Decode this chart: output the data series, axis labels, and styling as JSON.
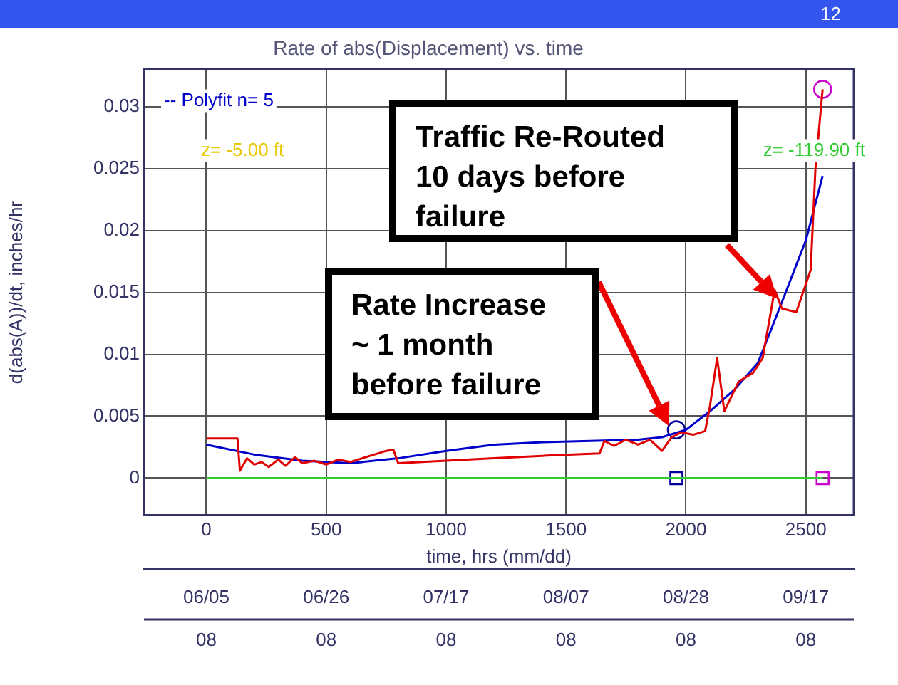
{
  "chart_data": {
    "type": "line",
    "title": "Rate of abs(Displacement) vs. time",
    "xlabel": "time, hrs (mm/dd)",
    "ylabel": "d(abs(A))/dt, inches/hr",
    "xlim": [
      -260,
      2700
    ],
    "xticks": [
      0,
      500,
      1000,
      1500,
      2000,
      2500
    ],
    "x2lim": [
      "2008-05-25T04:00",
      "2008-09-25T12:00"
    ],
    "x2ticks": [
      {
        "value": "2008-06-05",
        "label": "06/05\n08"
      },
      {
        "value": "2008-06-25T20:00",
        "label": "06/26\n08"
      },
      {
        "value": "2008-07-16T16:00",
        "label": "07/17\n08"
      },
      {
        "value": "2008-08-06T12:00",
        "label": "08/07\n08"
      },
      {
        "value": "2008-08-27T08:00",
        "label": "08/28\n08"
      },
      {
        "value": "2008-09-17T04:00",
        "label": "09/17\n08"
      }
    ],
    "ylim": [
      -0.003,
      0.033
    ],
    "yticks": [
      0,
      0.005,
      0.01,
      0.015,
      0.02,
      0.025,
      0.03
    ],
    "grid": true,
    "series": [
      {
        "color": "#e00000",
        "marker": "none",
        "x": [
          0,
          130,
          140,
          170,
          200,
          230,
          260,
          300,
          330,
          370,
          400,
          450,
          500,
          550,
          600,
          650,
          700,
          750,
          780,
          800,
          1000,
          1200,
          1400,
          1640,
          1660,
          1700,
          1750,
          1800,
          1850,
          1900,
          1940,
          1980,
          2030,
          2080,
          2100,
          2130,
          2160,
          2220,
          2280,
          2320,
          2370,
          2400,
          2460,
          2520,
          2540,
          2570
        ],
        "values": [
          0.0032,
          0.0032,
          0.0006,
          0.0016,
          0.0011,
          0.0013,
          0.0009,
          0.0015,
          0.001,
          0.0017,
          0.0012,
          0.0014,
          0.0011,
          0.0015,
          0.0013,
          0.0016,
          0.0019,
          0.0022,
          0.0023,
          0.0012,
          0.0014,
          0.0016,
          0.0018,
          0.002,
          0.003,
          0.0026,
          0.0031,
          0.0027,
          0.0031,
          0.0022,
          0.0033,
          0.0037,
          0.0035,
          0.0038,
          0.0058,
          0.0097,
          0.0054,
          0.0078,
          0.0085,
          0.0097,
          0.0152,
          0.0137,
          0.0134,
          0.0168,
          0.025,
          0.0314
        ]
      },
      {
        "name": "-- Polyfit n= 5",
        "color": "#0000cc",
        "marker": "none",
        "x": [
          0,
          200,
          400,
          600,
          800,
          1000,
          1200,
          1400,
          1600,
          1800,
          1900,
          2000,
          2100,
          2200,
          2300,
          2400,
          2500,
          2570
        ],
        "values": [
          0.0027,
          0.0019,
          0.0014,
          0.0012,
          0.0016,
          0.0022,
          0.0027,
          0.0029,
          0.003,
          0.0031,
          0.0033,
          0.0039,
          0.0054,
          0.0071,
          0.0093,
          0.0142,
          0.0192,
          0.0244
        ]
      },
      {
        "name": "z= -119.90 ft",
        "color": "#33cc33",
        "marker": "none",
        "x": [
          0,
          2570
        ],
        "values": [
          0,
          0
        ]
      },
      {
        "type": "scatter",
        "color": "#000099",
        "marker": "square",
        "x": [
          1960
        ],
        "values": [
          0
        ]
      },
      {
        "type": "scatter",
        "color": "#000099",
        "marker": "circle",
        "x": [
          1960
        ],
        "values": [
          0.0039
        ]
      },
      {
        "type": "scatter",
        "color": "#cc00cc",
        "marker": "square",
        "x": [
          2570
        ],
        "values": [
          0
        ]
      },
      {
        "type": "scatter",
        "color": "#cc00cc",
        "marker": "circle",
        "x": [
          2570
        ],
        "values": [
          0.0314
        ]
      }
    ],
    "annotations": [
      "12",
      "z= -5.00 ft",
      "Traffic Re-Routed\n10 days before\nfailure",
      "Rate Increase\n~ 1 month\nbefore failure"
    ]
  }
}
